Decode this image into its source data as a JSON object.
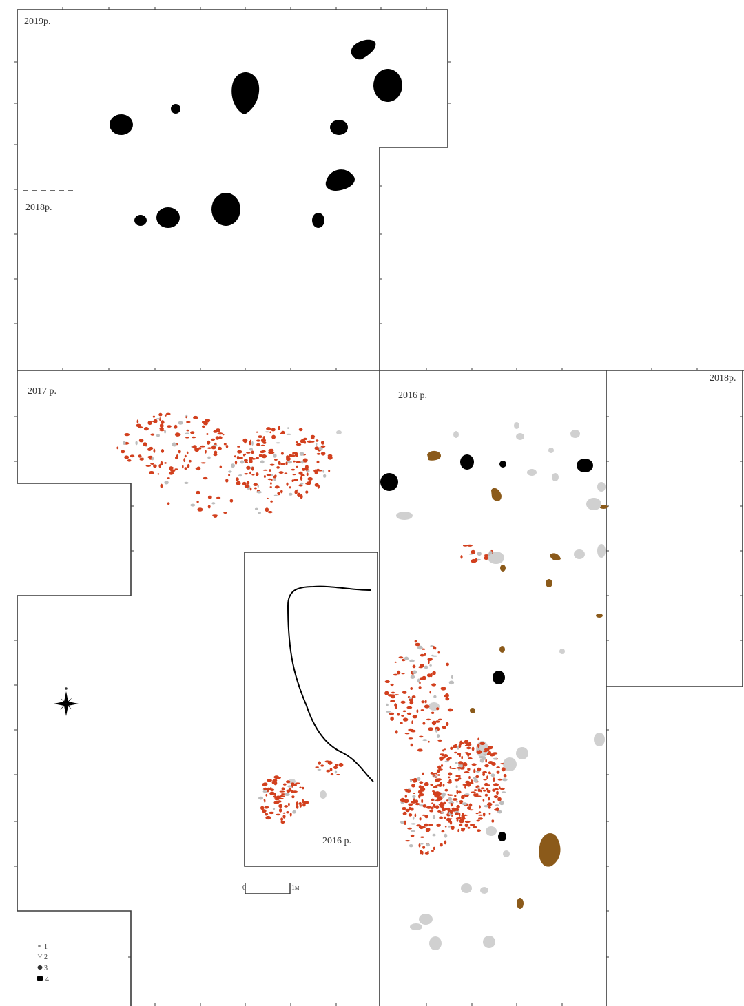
{
  "seasons": {
    "s2019_north": "2019р.",
    "s2018_north": "2018р.",
    "s2017_west": "2017 р.",
    "s2016_east": "2016 р.",
    "s2018_east": "2018р.",
    "s2016_inner": "2016 р."
  },
  "scale_bar": {
    "start_label": "0",
    "end_label": "1м"
  },
  "legend": [
    {
      "label": "1",
      "color": "#d9d9d9",
      "shape": "small-dot"
    },
    {
      "label": "2",
      "color": "#cfcfcf",
      "shape": "small-dot"
    },
    {
      "label": "3",
      "color": "#8a5a1a",
      "shape": "blob"
    },
    {
      "label": "4",
      "color": "#000000",
      "shape": "blob"
    }
  ],
  "colors": {
    "outline": "#3a3a3a",
    "pit_black": "#000000",
    "red_fragments": "#d2401e",
    "brown_features": "#8b5a1a",
    "grey_stones": "#d0d0d0"
  },
  "icons": {
    "north_arrow": "compass-rose-icon"
  }
}
